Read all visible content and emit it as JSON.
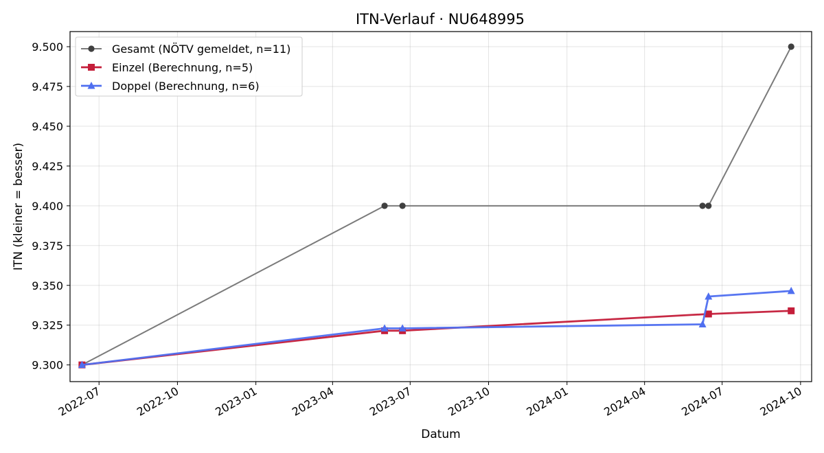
{
  "chart_data": {
    "type": "line",
    "title": "ITN-Verlauf · NU648995",
    "xlabel": "Datum",
    "ylabel": "ITN  (kleiner = besser)",
    "xlim": [
      "2022-05-28",
      "2024-10-14"
    ],
    "ylim": [
      9.2895,
      9.5095
    ],
    "grid": true,
    "legend_position": "top-left",
    "x_ticks": [
      "2022-07-01",
      "2022-10-01",
      "2023-01-01",
      "2023-04-01",
      "2023-07-01",
      "2023-10-01",
      "2024-01-01",
      "2024-04-01",
      "2024-07-01",
      "2024-10-01"
    ],
    "x_tick_labels": [
      "2022-07",
      "2022-10",
      "2023-01",
      "2023-04",
      "2023-07",
      "2023-10",
      "2024-01",
      "2024-04",
      "2024-07",
      "2024-10"
    ],
    "y_ticks": [
      9.3,
      9.325,
      9.35,
      9.375,
      9.4,
      9.425,
      9.45,
      9.475,
      9.5
    ],
    "y_tick_labels": [
      "9.300",
      "9.325",
      "9.350",
      "9.375",
      "9.400",
      "9.425",
      "9.450",
      "9.475",
      "9.500"
    ],
    "series": [
      {
        "name": "Gesamt (NÖTV gemeldet, n=11)",
        "color": "#7a7a7a",
        "marker_color": "#404040",
        "marker": "circle",
        "points": [
          {
            "x": "2022-06-11",
            "y": 9.3
          },
          {
            "x": "2023-06-01",
            "y": 9.4
          },
          {
            "x": "2023-06-22",
            "y": 9.4
          },
          {
            "x": "2024-06-08",
            "y": 9.4
          },
          {
            "x": "2024-06-15",
            "y": 9.4
          },
          {
            "x": "2024-09-20",
            "y": 9.5
          }
        ]
      },
      {
        "name": "Einzel (Berechnung, n=5)",
        "color": "#c41e3a",
        "marker": "square",
        "points": [
          {
            "x": "2022-06-11",
            "y": 9.3
          },
          {
            "x": "2023-06-01",
            "y": 9.3215
          },
          {
            "x": "2023-06-22",
            "y": 9.3215
          },
          {
            "x": "2024-06-15",
            "y": 9.332
          },
          {
            "x": "2024-09-20",
            "y": 9.334
          }
        ]
      },
      {
        "name": "Doppel (Berechnung, n=6)",
        "color": "#4f6ff0",
        "marker": "triangle",
        "points": [
          {
            "x": "2022-06-11",
            "y": 9.3
          },
          {
            "x": "2023-06-01",
            "y": 9.323
          },
          {
            "x": "2023-06-22",
            "y": 9.323
          },
          {
            "x": "2024-06-08",
            "y": 9.3255
          },
          {
            "x": "2024-06-15",
            "y": 9.343
          },
          {
            "x": "2024-09-20",
            "y": 9.3465
          }
        ]
      }
    ]
  }
}
